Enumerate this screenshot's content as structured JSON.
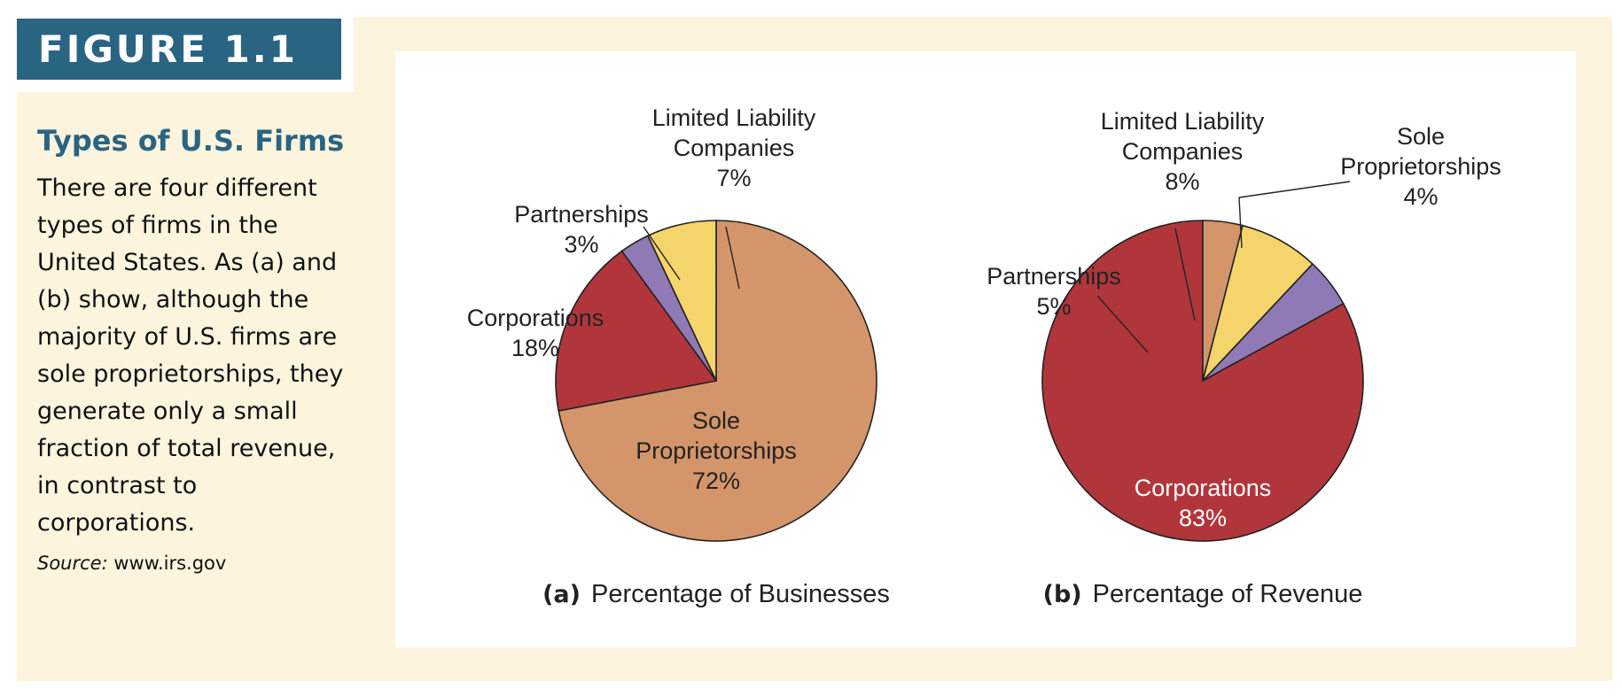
{
  "figure": {
    "label": "FIGURE 1.1",
    "title": "Types of U.S. Firms",
    "body": "There are four different types of firms in the United States. As (a) and (b) show, although the majority of U.S. firms are sole proprietorships, they generate only a small fraction of total revenue, in contrast to corporations.",
    "source_label": "Source:",
    "source_value": "www.irs.gov"
  },
  "colors": {
    "sole_proprietorships": "#d4956a",
    "corporations": "#b0363c",
    "partnerships": "#8f7ab5",
    "limited_liability": "#f5d46b",
    "panel_bg": "#fdf4de",
    "label_bg": "#2a6483"
  },
  "chart_data": [
    {
      "type": "pie",
      "panel": "(a)",
      "title": "Percentage of Businesses",
      "slices": [
        {
          "label": "Sole Proprietorships",
          "value": 72,
          "display": "72%",
          "color": "#d4956a"
        },
        {
          "label": "Corporations",
          "value": 18,
          "display": "18%",
          "color": "#b0363c"
        },
        {
          "label": "Partnerships",
          "value": 3,
          "display": "3%",
          "color": "#8f7ab5"
        },
        {
          "label": "Limited Liability Companies",
          "value": 7,
          "display": "7%",
          "color": "#f5d46b"
        }
      ]
    },
    {
      "type": "pie",
      "panel": "(b)",
      "title": "Percentage of Revenue",
      "slices": [
        {
          "label": "Corporations",
          "value": 83,
          "display": "83%",
          "color": "#b0363c"
        },
        {
          "label": "Partnerships",
          "value": 5,
          "display": "5%",
          "color": "#8f7ab5"
        },
        {
          "label": "Limited Liability Companies",
          "value": 8,
          "display": "8%",
          "color": "#f5d46b"
        },
        {
          "label": "Sole Proprietorships",
          "value": 4,
          "display": "4%",
          "color": "#d4956a"
        }
      ]
    }
  ]
}
